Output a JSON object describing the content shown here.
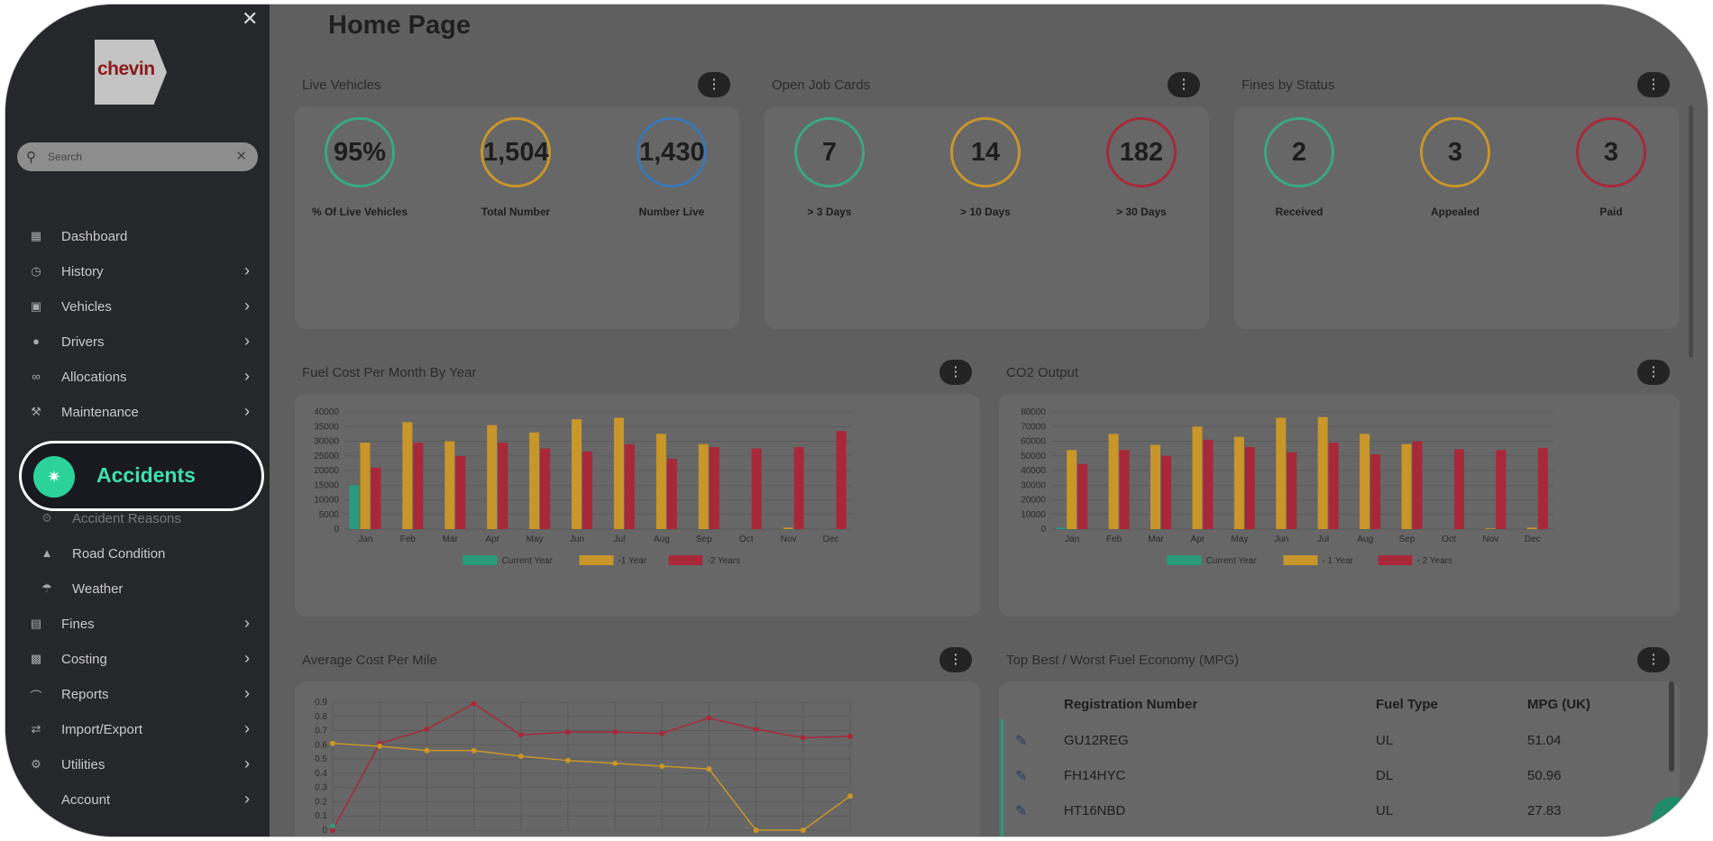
{
  "sidebar": {
    "logo_text": "chevin",
    "close_label": "✕",
    "search_placeholder": "Search",
    "items": [
      {
        "label": "Dashboard",
        "icon": "dashboard-icon",
        "chevron": false
      },
      {
        "label": "History",
        "icon": "clock-icon",
        "chevron": true
      },
      {
        "label": "Vehicles",
        "icon": "car-icon",
        "chevron": true
      },
      {
        "label": "Drivers",
        "icon": "user-icon",
        "chevron": true
      },
      {
        "label": "Allocations",
        "icon": "link-icon",
        "chevron": true
      },
      {
        "label": "Maintenance",
        "icon": "wrench-icon",
        "chevron": true
      }
    ],
    "highlight": {
      "label": "Accidents",
      "icon": "car-crash-icon"
    },
    "sub_items": [
      {
        "label": "Accident Reasons",
        "icon": "gear-icon"
      },
      {
        "label": "Road Condition",
        "icon": "road-icon"
      },
      {
        "label": "Weather",
        "icon": "umbrella-icon"
      }
    ],
    "items_after": [
      {
        "label": "Fines",
        "icon": "document-icon",
        "chevron": true
      },
      {
        "label": "Costing",
        "icon": "money-icon",
        "chevron": true
      },
      {
        "label": "Reports",
        "icon": "chart-icon",
        "chevron": true
      },
      {
        "label": "Import/Export",
        "icon": "exchange-icon",
        "chevron": true
      },
      {
        "label": "Utilities",
        "icon": "cogs-icon",
        "chevron": true
      },
      {
        "label": "Account",
        "icon": "account-icon",
        "chevron": true
      }
    ]
  },
  "main": {
    "page_title": "Home Page",
    "kpi_sections": [
      {
        "title": "Live Vehicles",
        "kpis": [
          {
            "value": "95%",
            "label": "% Of Live Vehicles",
            "color": "#3aa882"
          },
          {
            "value": "1,504",
            "label": "Total Number",
            "color": "#c9962a"
          },
          {
            "value": "1,430",
            "label": "Number Live",
            "color": "#3b78b5"
          }
        ]
      },
      {
        "title": "Open Job Cards",
        "kpis": [
          {
            "value": "7",
            "label": "> 3 Days",
            "color": "#3aa882"
          },
          {
            "value": "14",
            "label": "> 10 Days",
            "color": "#c9962a"
          },
          {
            "value": "182",
            "label": "> 30 Days",
            "color": "#a8283a"
          }
        ]
      },
      {
        "title": "Fines by Status",
        "kpis": [
          {
            "value": "2",
            "label": "Received",
            "color": "#3aa882"
          },
          {
            "value": "3",
            "label": "Appealed",
            "color": "#c9962a"
          },
          {
            "value": "3",
            "label": "Paid",
            "color": "#a8283a"
          }
        ]
      }
    ],
    "fuel_title": "Fuel Cost Per Month By Year",
    "co2_title": "CO2 Output",
    "acpm_title": "Average Cost Per Mile",
    "table": {
      "title": "Top Best / Worst Fuel Economy (MPG)",
      "headers": [
        "Registration Number",
        "Fuel Type",
        "MPG (UK)"
      ],
      "rows": [
        [
          "GU12REG",
          "UL",
          "51.04"
        ],
        [
          "FH14HYC",
          "DL",
          "50.96"
        ],
        [
          "HT16NBD",
          "UL",
          "27.83"
        ]
      ]
    }
  },
  "colors": {
    "current": "#2a9a7c",
    "minus1": "#c9962a",
    "minus2": "#a8283a"
  },
  "chart_data": [
    {
      "type": "bar",
      "title": "Fuel Cost Per Month By Year",
      "categories": [
        "Jan",
        "Feb",
        "Mar",
        "Apr",
        "May",
        "Jun",
        "Jul",
        "Aug",
        "Sep",
        "Oct",
        "Nov",
        "Dec"
      ],
      "ylim": [
        0,
        40000
      ],
      "yticks": [
        0,
        5000,
        10000,
        15000,
        20000,
        25000,
        30000,
        35000,
        40000
      ],
      "series": [
        {
          "name": "Current Year",
          "values": [
            15000,
            0,
            0,
            0,
            0,
            0,
            0,
            0,
            0,
            0,
            0,
            0
          ]
        },
        {
          "name": "-1 Year",
          "values": [
            29500,
            36500,
            30000,
            35500,
            33000,
            37500,
            38000,
            32500,
            29000,
            0,
            500,
            0
          ]
        },
        {
          "name": "-2 Years",
          "values": [
            21000,
            29500,
            25000,
            29500,
            27500,
            26500,
            29000,
            24000,
            28000,
            27500,
            28000,
            33500
          ]
        }
      ]
    },
    {
      "type": "bar",
      "title": "CO2 Output",
      "categories": [
        "Jan",
        "Feb",
        "Mar",
        "Apr",
        "May",
        "Jun",
        "Jul",
        "Aug",
        "Sep",
        "Oct",
        "Nov",
        "Dec"
      ],
      "ylim": [
        0,
        80000
      ],
      "yticks": [
        0,
        10000,
        20000,
        30000,
        40000,
        50000,
        60000,
        70000,
        80000
      ],
      "series": [
        {
          "name": "Current Year",
          "values": [
            1000,
            0,
            0,
            0,
            0,
            0,
            0,
            0,
            0,
            0,
            0,
            0
          ]
        },
        {
          "name": "- 1 Year",
          "values": [
            54000,
            65000,
            57500,
            70000,
            63000,
            76000,
            76500,
            65000,
            58000,
            0,
            500,
            1000
          ]
        },
        {
          "name": "- 2 Years",
          "values": [
            44500,
            54000,
            50000,
            61000,
            56000,
            52500,
            59000,
            51000,
            60000,
            54500,
            54000,
            55500
          ]
        }
      ]
    },
    {
      "type": "line",
      "title": "Average Cost Per Mile",
      "ylim": [
        0,
        0.9
      ],
      "yticks": [
        0,
        0.1,
        0.2,
        0.3,
        0.4,
        0.5,
        0.6,
        0.7,
        0.8,
        0.9
      ],
      "x": [
        0,
        1,
        2,
        3,
        4,
        5,
        6,
        7,
        8,
        9,
        10,
        11
      ],
      "series": [
        {
          "values": [
            0.0,
            0.61,
            0.71,
            0.89,
            0.67,
            0.69,
            0.69,
            0.68,
            0.79,
            0.71,
            0.65,
            0.66
          ]
        },
        {
          "values": [
            0.61,
            0.59,
            0.56,
            0.56,
            0.52,
            0.49,
            0.47,
            0.45,
            0.43,
            0.0,
            0.0,
            0.24
          ]
        },
        {
          "values": [
            0.03,
            null,
            null,
            null,
            null,
            null,
            null,
            null,
            null,
            null,
            null,
            null
          ]
        }
      ]
    }
  ]
}
